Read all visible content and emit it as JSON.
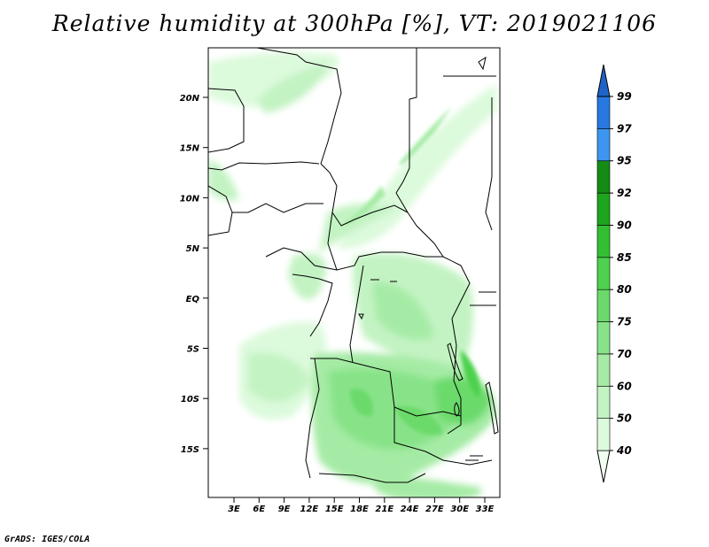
{
  "title": "Relative humidity at 300hPa [%], VT: 2019021106",
  "credit": "GrADS: IGES/COLA",
  "map": {
    "lat_ticks": [
      "20N",
      "15N",
      "10N",
      "5N",
      "EQ",
      "5S",
      "10S",
      "15S"
    ],
    "lon_ticks": [
      "3E",
      "6E",
      "9E",
      "12E",
      "15E",
      "18E",
      "21E",
      "24E",
      "27E",
      "30E",
      "33E"
    ]
  },
  "legend": {
    "levels": [
      "40",
      "50",
      "60",
      "70",
      "75",
      "80",
      "85",
      "90",
      "92",
      "95",
      "97",
      "99"
    ],
    "colors": [
      "#f0fff0",
      "#dcfadc",
      "#c3f3c3",
      "#a5eba5",
      "#88e388",
      "#6bda6b",
      "#4ed14e",
      "#32c032",
      "#1ea51e",
      "#148c14",
      "#3c96f0",
      "#2878e1",
      "#1e64c8"
    ]
  }
}
